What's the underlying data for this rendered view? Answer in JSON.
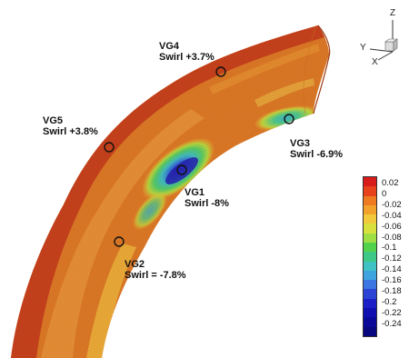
{
  "vortex_generators": [
    {
      "name": "VG4",
      "swirl": "Swirl +3.7%"
    },
    {
      "name": "VG5",
      "swirl": "Swirl +3.8%"
    },
    {
      "name": "VG3",
      "swirl": "Swirl -6.9%"
    },
    {
      "name": "VG1",
      "swirl": "Swirl -8%"
    },
    {
      "name": "VG2",
      "swirl": "Swirl = -7.8%"
    }
  ],
  "legend": {
    "levels": [
      "0.02",
      "0",
      "-0.02",
      "-0.04",
      "-0.06",
      "-0.08",
      "-0.1",
      "-0.12",
      "-0.14",
      "-0.16",
      "-0.18",
      "-0.2",
      "-0.22",
      "-0.24"
    ],
    "colors": [
      "#d81c1c",
      "#e8421c",
      "#ee7a22",
      "#f2a22a",
      "#f2c93a",
      "#d8e03e",
      "#9ee044",
      "#52d24a",
      "#3ec888",
      "#3ec2c4",
      "#3ea4e0",
      "#3c76e2",
      "#2c44d6",
      "#1c1ec6",
      "#1010b0",
      "#0a0a99",
      "#080880"
    ]
  },
  "axes": {
    "z": "Z",
    "y": "Y",
    "x": "X"
  },
  "colors": {
    "surface_base": "#de7a26",
    "surface_dark": "#c8461e",
    "surface_light": "#efa43a",
    "low_core": "#2a3ccc"
  }
}
